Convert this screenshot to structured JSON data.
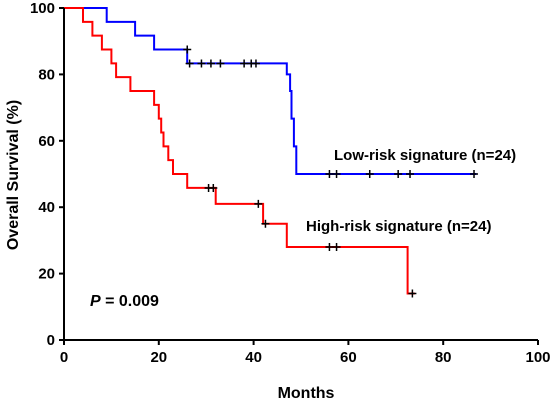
{
  "chart_data": {
    "type": "line",
    "title": "",
    "xlabel": "Months",
    "ylabel": "Overall Survival (%)",
    "xlim": [
      0,
      100
    ],
    "ylim": [
      0,
      100
    ],
    "x_ticks": [
      0,
      20,
      40,
      60,
      80,
      100
    ],
    "y_ticks": [
      0,
      20,
      40,
      60,
      80,
      100
    ],
    "grid": false,
    "series": [
      {
        "name": "Low-risk signature (n=24)",
        "color": "#0000ff",
        "steps": [
          [
            0,
            100
          ],
          [
            9,
            100
          ],
          [
            9,
            95.8
          ],
          [
            15,
            95.8
          ],
          [
            15,
            91.7
          ],
          [
            19,
            91.7
          ],
          [
            19,
            87.5
          ],
          [
            26,
            87.5
          ],
          [
            26,
            83.3
          ],
          [
            47,
            83.3
          ],
          [
            47,
            80
          ],
          [
            47.7,
            80
          ],
          [
            47.7,
            75
          ],
          [
            48,
            75
          ],
          [
            48,
            66.7
          ],
          [
            48.5,
            66.7
          ],
          [
            48.5,
            58.3
          ],
          [
            49,
            58.3
          ],
          [
            49,
            50
          ],
          [
            87,
            50
          ]
        ],
        "censored": [
          [
            26,
            87.5
          ],
          [
            26.5,
            83.3
          ],
          [
            29,
            83.3
          ],
          [
            31,
            83.3
          ],
          [
            33,
            83.3
          ],
          [
            38,
            83.3
          ],
          [
            39.5,
            83.3
          ],
          [
            40.5,
            83.3
          ],
          [
            56,
            50
          ],
          [
            57.5,
            50
          ],
          [
            64.5,
            50
          ],
          [
            70.5,
            50
          ],
          [
            73,
            50
          ],
          [
            86.5,
            50
          ]
        ]
      },
      {
        "name": "High-risk signature (n=24)",
        "color": "#ff0000",
        "steps": [
          [
            0,
            100
          ],
          [
            4,
            100
          ],
          [
            4,
            95.8
          ],
          [
            6,
            95.8
          ],
          [
            6,
            91.7
          ],
          [
            8,
            91.7
          ],
          [
            8,
            87.5
          ],
          [
            10,
            87.5
          ],
          [
            10,
            83.3
          ],
          [
            11,
            83.3
          ],
          [
            11,
            79.2
          ],
          [
            14,
            79.2
          ],
          [
            14,
            75
          ],
          [
            19,
            75
          ],
          [
            19,
            70.8
          ],
          [
            20,
            70.8
          ],
          [
            20,
            66.7
          ],
          [
            20.5,
            66.7
          ],
          [
            20.5,
            62.5
          ],
          [
            21,
            62.5
          ],
          [
            21,
            58.3
          ],
          [
            22,
            58.3
          ],
          [
            22,
            54.2
          ],
          [
            23,
            54.2
          ],
          [
            23,
            50
          ],
          [
            26,
            50
          ],
          [
            26,
            45.8
          ],
          [
            32,
            45.8
          ],
          [
            32,
            41
          ],
          [
            42,
            41
          ],
          [
            42,
            35
          ],
          [
            47,
            35
          ],
          [
            47,
            28
          ],
          [
            72.5,
            28
          ],
          [
            72.5,
            14
          ],
          [
            74,
            14
          ]
        ],
        "censored": [
          [
            30.5,
            45.8
          ],
          [
            31.5,
            45.8
          ],
          [
            41,
            41
          ],
          [
            42.5,
            35
          ],
          [
            56,
            28
          ],
          [
            57.5,
            28
          ],
          [
            73.5,
            14
          ]
        ]
      }
    ],
    "annotations": {
      "low_label": "Low-risk signature (n=24)",
      "high_label": "High-risk signature (n=24)",
      "p_prefix": "P",
      "p_suffix": " = 0.009"
    }
  }
}
